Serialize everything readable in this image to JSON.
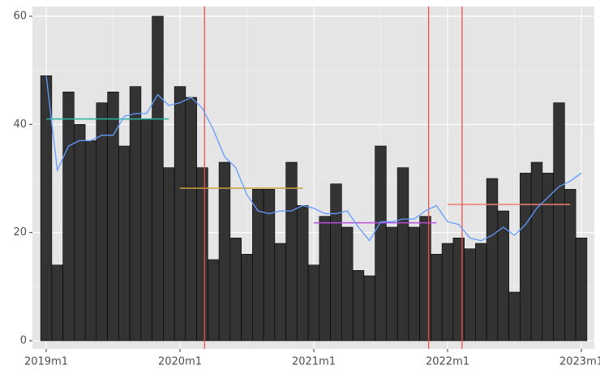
{
  "chart_data": {
    "type": "bar",
    "categories": [
      "2019m1",
      null,
      null,
      null,
      null,
      null,
      null,
      null,
      null,
      null,
      null,
      null,
      "2020m1",
      null,
      null,
      null,
      null,
      null,
      null,
      null,
      null,
      null,
      null,
      null,
      "2021m1",
      null,
      null,
      null,
      null,
      null,
      null,
      null,
      null,
      null,
      null,
      null,
      "2022m1",
      null,
      null,
      null,
      null,
      null,
      null,
      null,
      null,
      null,
      null,
      null,
      "2023m1"
    ],
    "values": [
      49,
      14,
      46,
      40,
      37,
      44,
      46,
      36,
      47,
      41,
      60,
      32,
      47,
      45,
      32,
      15,
      33,
      19,
      16,
      28,
      28,
      18,
      33,
      25,
      14,
      23,
      29,
      21,
      13,
      12,
      36,
      21,
      32,
      21,
      23,
      16,
      18,
      19,
      17,
      18,
      30,
      24,
      9,
      31,
      33,
      31,
      44,
      28,
      19
    ],
    "color": "#333333",
    "line": {
      "color": "#619cff",
      "values": [
        49,
        31.5,
        36,
        37,
        37,
        38,
        38,
        41.5,
        42,
        42,
        45.5,
        43.5,
        44,
        45,
        43,
        39,
        34,
        32,
        27,
        24,
        23.5,
        24,
        24,
        25,
        24.5,
        23.5,
        23.5,
        24,
        21,
        18.5,
        22,
        22,
        22.5,
        22.5,
        24,
        25,
        22,
        21.5,
        19,
        18.5,
        19.5,
        21,
        19.5,
        21.5,
        24.5,
        26.5,
        28.5,
        29.5,
        31
      ]
    },
    "segments": [
      {
        "value": 41,
        "start": 0,
        "end": 11,
        "color": "#2ab3a3"
      },
      {
        "value": 28.2,
        "start": 12,
        "end": 23,
        "color": "#c9a33c"
      },
      {
        "value": 21.8,
        "start": 24,
        "end": 35,
        "color": "#b44fe0"
      },
      {
        "value": 25.2,
        "start": 36,
        "end": 47,
        "color": "#f07f6c"
      }
    ],
    "vlines": [
      {
        "x": 14.2,
        "color": "#e8524a"
      },
      {
        "x": 34.3,
        "color": "#e8524a"
      },
      {
        "x": 37.3,
        "color": "#e8524a"
      }
    ],
    "ylim": [
      -1.5,
      61.8
    ],
    "yticks": [
      0,
      20,
      40,
      60
    ],
    "grid": true
  }
}
